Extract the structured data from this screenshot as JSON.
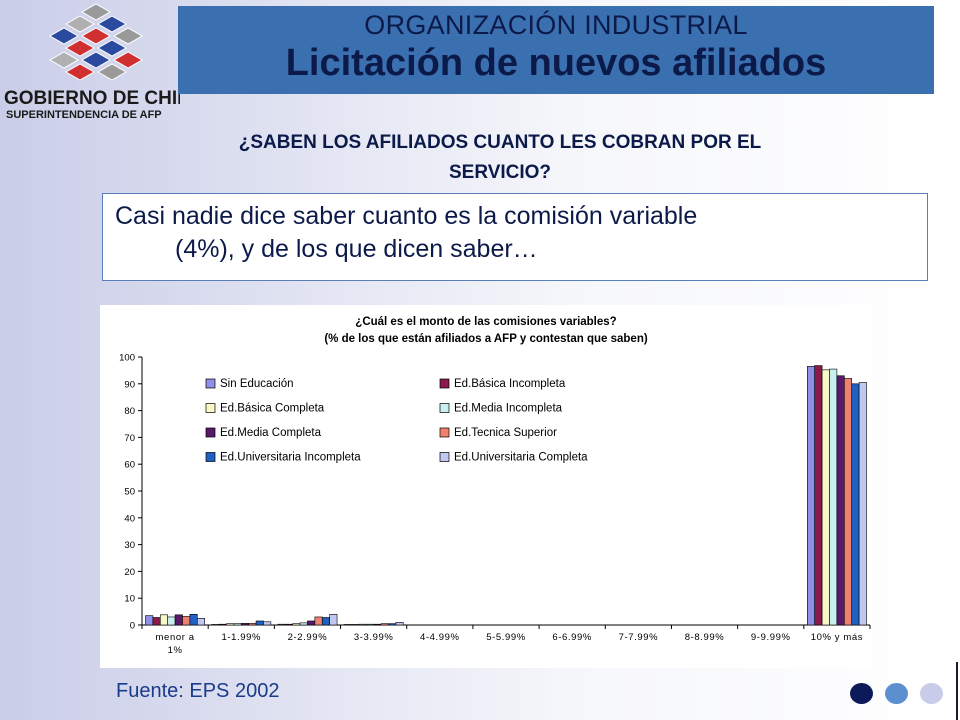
{
  "logo": {
    "name": "GOBIERNO DE CHILE",
    "subname": "SUPERINTENDENCIA DE AFP"
  },
  "header": {
    "line1": "ORGANIZACIÓN INDUSTRIAL",
    "line2": "Licitación de nuevos afiliados"
  },
  "question": {
    "line1": "¿SABEN LOS AFILIADOS CUANTO LES COBRAN POR EL",
    "line2": "SERVICIO?"
  },
  "body_text": {
    "line1": "Casi nadie dice saber cuanto es la comisión variable",
    "line2": "(4%), y de los que dicen saber…"
  },
  "source": "Fuente: EPS 2002",
  "colors": {
    "title_bg": "#3a6fb0",
    "title_text": "#0c1a4a",
    "accent_dark": "#0c1a5a",
    "accent_mid": "#5b8fd0",
    "accent_light": "#c8cce8"
  },
  "chart_data": {
    "type": "bar",
    "title": "¿Cuál es el monto de las comisiones variables?",
    "subtitle": "(% de los que están afiliados a AFP y contestan que saben)",
    "xlabel": "",
    "ylabel": "",
    "ylim": [
      0,
      100
    ],
    "yticks": [
      0,
      10,
      20,
      30,
      40,
      50,
      60,
      70,
      80,
      90,
      100
    ],
    "grid": false,
    "legend_position": "top-left",
    "categories": [
      "menor a 1%",
      "1-1.99%",
      "2-2.99%",
      "3-3.99%",
      "4-4.99%",
      "5-5.99%",
      "6-6.99%",
      "7-7.99%",
      "8-8.99%",
      "9-9.99%",
      "10% y más"
    ],
    "series": [
      {
        "name": "Sin Educación",
        "color": "#8f8fe8",
        "values": [
          3.5,
          0.2,
          0.3,
          0.2,
          0,
          0,
          0,
          0,
          0,
          0,
          96.5
        ]
      },
      {
        "name": "Ed.Básica Incompleta",
        "color": "#8b1a4a",
        "values": [
          2.8,
          0.3,
          0.3,
          0.2,
          0,
          0,
          0,
          0,
          0,
          0,
          96.8
        ]
      },
      {
        "name": "Ed.Básica Completa",
        "color": "#f8f8c8",
        "values": [
          3.8,
          0.5,
          0.5,
          0.3,
          0,
          0,
          0,
          0,
          0,
          0,
          95.2
        ]
      },
      {
        "name": "Ed.Media Incompleta",
        "color": "#c8f0f0",
        "values": [
          3.0,
          0.5,
          0.8,
          0.3,
          0,
          0,
          0,
          0,
          0,
          0,
          95.5
        ]
      },
      {
        "name": "Ed.Media Completa",
        "color": "#5a1a6a",
        "values": [
          3.8,
          0.6,
          1.5,
          0.3,
          0,
          0,
          0,
          0,
          0,
          0,
          93.0
        ]
      },
      {
        "name": "Ed.Tecnica Superior",
        "color": "#f08070",
        "values": [
          3.2,
          0.6,
          3.0,
          0.5,
          0,
          0,
          0,
          0,
          0,
          0,
          92.0
        ]
      },
      {
        "name": "Ed.Universitaria Incompleta",
        "color": "#2060c0",
        "values": [
          4.0,
          1.5,
          2.8,
          0.5,
          0,
          0,
          0,
          0,
          0,
          0,
          90.0
        ]
      },
      {
        "name": "Ed.Universitaria Completa",
        "color": "#c0c8f0",
        "values": [
          2.5,
          1.2,
          4.0,
          1.0,
          0,
          0,
          0,
          0,
          0,
          0,
          90.5
        ]
      }
    ]
  }
}
